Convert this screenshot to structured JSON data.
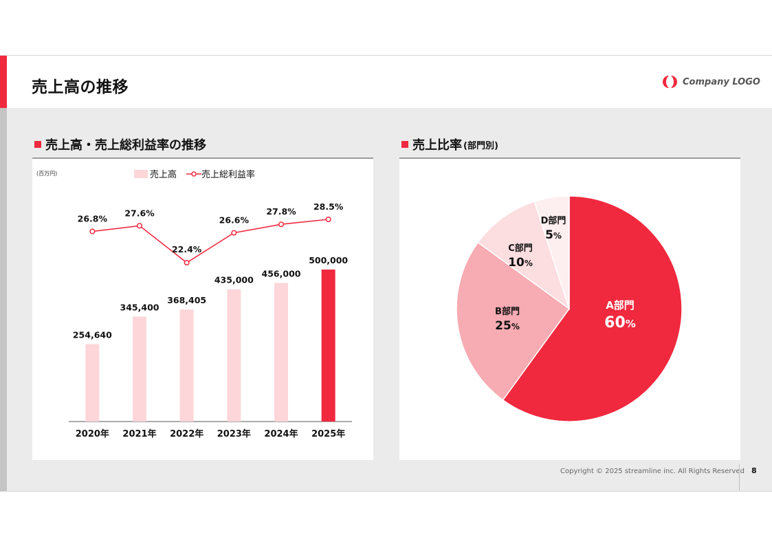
{
  "header": {
    "title": "売上高の推移",
    "logo_text": "Company LOGO"
  },
  "left_section": {
    "title": "売上高・売上総利益率の推移",
    "unit": "(百万円)",
    "legend_bar": "売上高",
    "legend_line": "売上総利益率"
  },
  "right_section": {
    "title": "売上比率",
    "subtitle": "(部門別)"
  },
  "footer": {
    "copyright": "Copyright © 2025 streamline inc. All Rights Reserved",
    "page_number": "8"
  },
  "colors": {
    "accent": "#f0293e",
    "bar_light": "#fdd6da",
    "pie_a": "#f0293e",
    "pie_b": "#f7abb2",
    "pie_c": "#fcdde0",
    "pie_d": "#fdeef0"
  },
  "chart_data": [
    {
      "type": "bar",
      "categories": [
        "2020年",
        "2021年",
        "2022年",
        "2023年",
        "2024年",
        "2025年"
      ],
      "series": [
        {
          "name": "売上高",
          "values": [
            254640,
            345400,
            368405,
            435000,
            456000,
            500000
          ],
          "labels": [
            "254,640",
            "345,400",
            "368,405",
            "435,000",
            "456,000",
            "500,000"
          ],
          "highlight_index": 5
        },
        {
          "name": "売上総利益率",
          "type": "line",
          "values": [
            26.8,
            27.6,
            22.4,
            26.6,
            27.8,
            28.5
          ],
          "labels": [
            "26.8%",
            "27.6%",
            "22.4%",
            "26.6%",
            "27.8%",
            "28.5%"
          ]
        }
      ],
      "ylim": [
        0,
        600000
      ],
      "y2lim": [
        0,
        32
      ],
      "legend": "top"
    },
    {
      "type": "pie",
      "categories": [
        "A部門",
        "B部門",
        "C部門",
        "D部門"
      ],
      "values": [
        60,
        25,
        10,
        5
      ],
      "value_labels": [
        "60",
        "25",
        "10",
        "5"
      ],
      "unit": "%"
    }
  ]
}
